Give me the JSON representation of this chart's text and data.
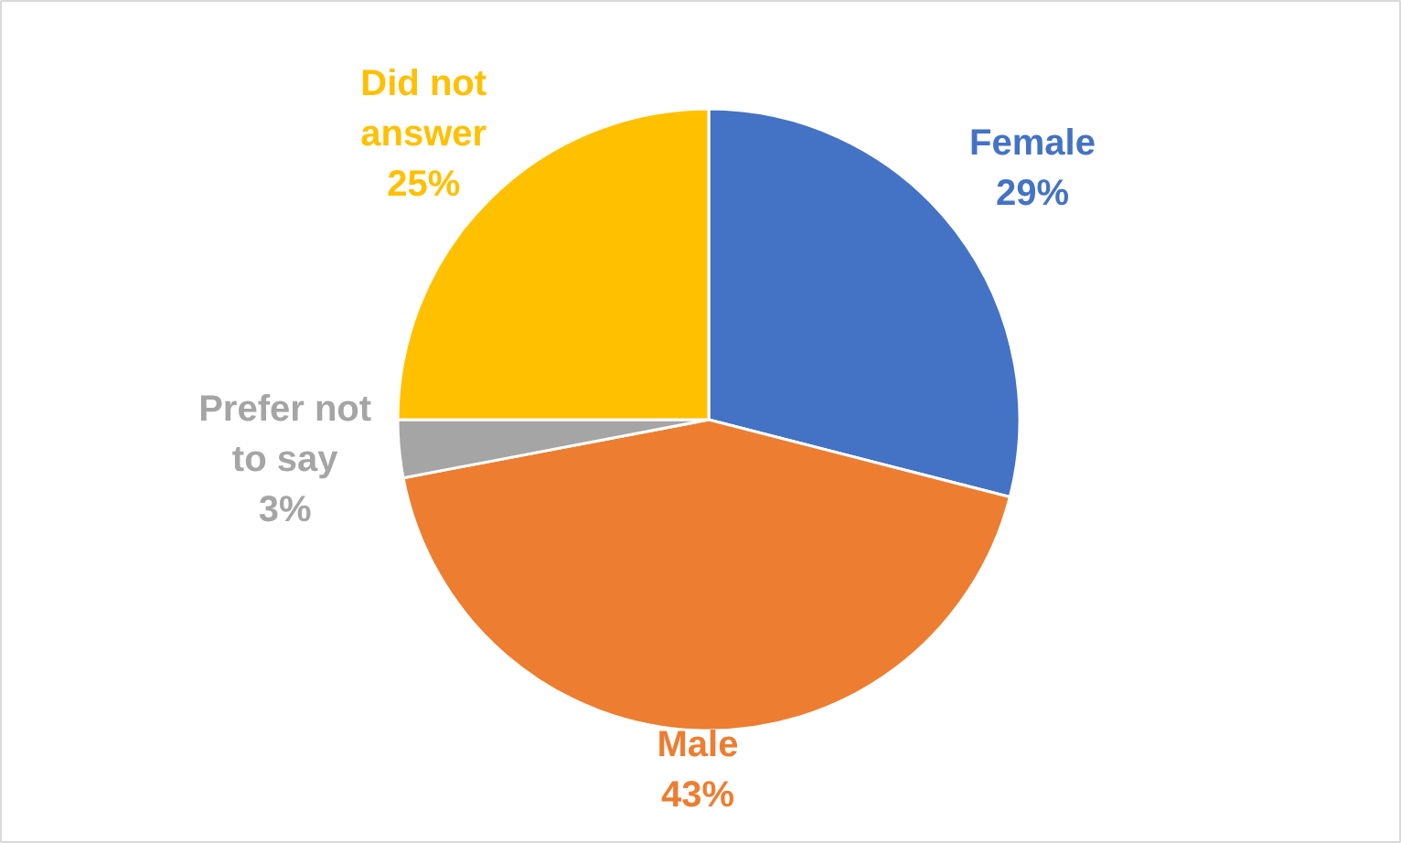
{
  "chart_data": {
    "type": "pie",
    "categories": [
      "Female",
      "Male",
      "Prefer not to say",
      "Did not answer"
    ],
    "values": [
      29,
      43,
      3,
      25
    ],
    "value_labels": [
      "29%",
      "43%",
      "3%",
      "25%"
    ],
    "colors": [
      "#4472c4",
      "#ed7d31",
      "#a5a5a5",
      "#ffc000"
    ]
  }
}
